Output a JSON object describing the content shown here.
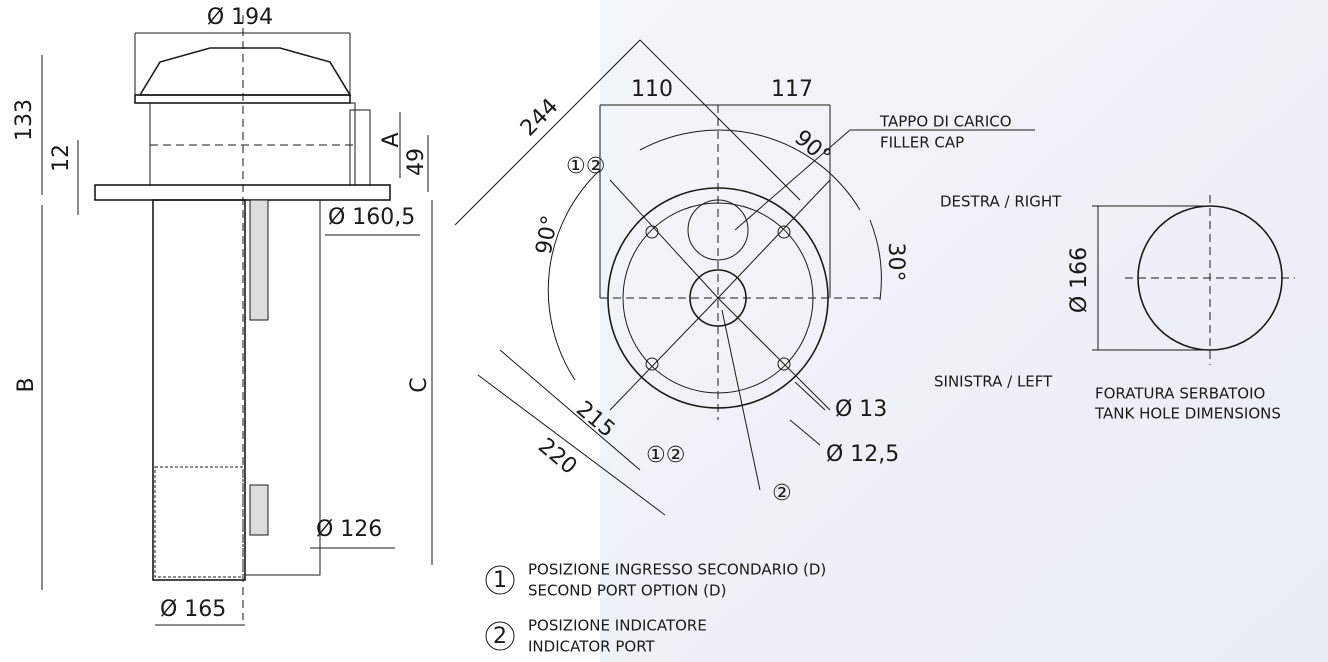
{
  "side_view": {
    "diameter_top": "Ø 194",
    "height_top": "133",
    "flange": "12",
    "port": "A",
    "port_height": "49",
    "diameter_flange": "Ø 160,5",
    "length_b": "B",
    "length_c": "C",
    "diameter_element": "Ø 126",
    "diameter_tube": "Ø 165"
  },
  "top_view": {
    "diagonal": "244",
    "offset_left": "110",
    "offset_right": "117",
    "filler_cap_it": "TAPPO DI CARICO",
    "filler_cap_en": "FILLER CAP",
    "angle_right": "90°",
    "angle_left": "90°",
    "angle_port": "30°",
    "port_marks_top": "①②",
    "port_marks_bottom": "①②",
    "indicator_mark": "②",
    "diagonal_inner": "215",
    "diagonal_outer": "220",
    "hole_large": "Ø 13",
    "hole_small": "Ø 12,5",
    "right": "DESTRA / RIGHT",
    "left": "SINISTRA / LEFT"
  },
  "tank_hole": {
    "diameter": "Ø 166",
    "title_it": "FORATURA SERBATOIO",
    "title_en": "TANK HOLE DIMENSIONS"
  },
  "legend": [
    {
      "number": "1",
      "text_it": "POSIZIONE INGRESSO SECONDARIO (D)",
      "text_en": "SECOND PORT OPTION (D)"
    },
    {
      "number": "2",
      "text_it": "POSIZIONE INDICATORE",
      "text_en": "INDICATOR PORT"
    }
  ]
}
